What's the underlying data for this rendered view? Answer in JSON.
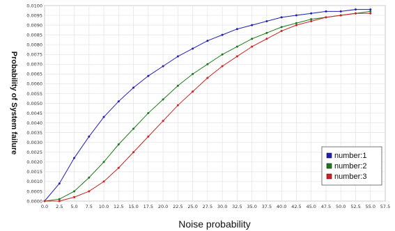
{
  "chart_data": {
    "type": "line",
    "title": "",
    "xlabel": "Noise probability",
    "ylabel": "Probability of System failure",
    "xlim": [
      0,
      57.5
    ],
    "ylim": [
      0,
      0.01
    ],
    "x_ticks": [
      "0.0",
      "2.5",
      "5.0",
      "7.5",
      "10.0",
      "12.5",
      "15.0",
      "17.5",
      "20.0",
      "22.5",
      "25.0",
      "27.5",
      "30.0",
      "32.5",
      "35.0",
      "37.5",
      "40.0",
      "42.5",
      "45.0",
      "47.5",
      "50.0",
      "52.5",
      "55.0",
      "57.5"
    ],
    "y_ticks": [
      "0.0000",
      "0.0005",
      "0.0010",
      "0.0015",
      "0.0020",
      "0.0025",
      "0.0030",
      "0.0035",
      "0.0040",
      "0.0045",
      "0.0050",
      "0.0055",
      "0.0060",
      "0.0065",
      "0.0070",
      "0.0075",
      "0.0080",
      "0.0085",
      "0.0090",
      "0.0095",
      "0.0100"
    ],
    "grid": true,
    "legend_position": "bottom-right",
    "x": [
      0,
      2.5,
      5,
      7.5,
      10,
      12.5,
      15,
      17.5,
      20,
      22.5,
      25,
      27.5,
      30,
      32.5,
      35,
      37.5,
      40,
      42.5,
      45,
      47.5,
      50,
      52.5,
      55
    ],
    "series": [
      {
        "name": "number:1",
        "color": "#1f1fb4",
        "values": [
          0.0,
          0.0009,
          0.0022,
          0.0033,
          0.0043,
          0.0051,
          0.0058,
          0.0064,
          0.0069,
          0.0074,
          0.0078,
          0.0082,
          0.0085,
          0.0088,
          0.009,
          0.0092,
          0.0094,
          0.0095,
          0.0096,
          0.0097,
          0.0097,
          0.0098,
          0.0098
        ]
      },
      {
        "name": "number:2",
        "color": "#1a7a1a",
        "values": [
          0.0,
          0.0001,
          0.0005,
          0.0012,
          0.002,
          0.0029,
          0.0037,
          0.0045,
          0.0052,
          0.0059,
          0.0065,
          0.007,
          0.0075,
          0.0079,
          0.0083,
          0.0086,
          0.0089,
          0.0091,
          0.0093,
          0.0094,
          0.0095,
          0.0096,
          0.0097
        ]
      },
      {
        "name": "number:3",
        "color": "#d02020",
        "values": [
          0.0,
          0.0,
          0.0002,
          0.0005,
          0.001,
          0.0017,
          0.0025,
          0.0033,
          0.0041,
          0.0049,
          0.0056,
          0.0063,
          0.0069,
          0.0074,
          0.0079,
          0.0083,
          0.0087,
          0.009,
          0.0092,
          0.0094,
          0.0095,
          0.0096,
          0.0096
        ]
      }
    ]
  }
}
